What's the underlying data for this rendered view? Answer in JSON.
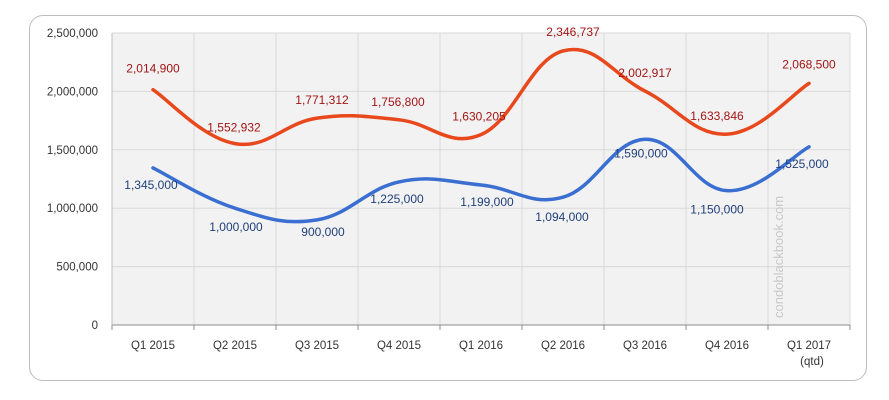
{
  "chart_data": {
    "type": "line",
    "title": "",
    "xlabel": "",
    "ylabel": "",
    "ylim": [
      0,
      2500000
    ],
    "y_ticks": [
      0,
      500000,
      1000000,
      1500000,
      2000000,
      2500000
    ],
    "y_tick_labels": [
      "0",
      "500,000",
      "1,000,000",
      "1,500,000",
      "2,000,000",
      "2,500,000"
    ],
    "categories": [
      [
        "Q1 2015"
      ],
      [
        "Q2 2015"
      ],
      [
        "Q3 2015"
      ],
      [
        "Q4 2015"
      ],
      [
        "Q1 2016"
      ],
      [
        "Q2 2016"
      ],
      [
        "Q3 2016"
      ],
      [
        "Q4 2016"
      ],
      [
        "Q1 2017",
        "(qtd)"
      ]
    ],
    "grid": true,
    "series": [
      {
        "name": "series-red",
        "color": "#e8481c",
        "label_color": "#a31515",
        "values": [
          2014900,
          1552932,
          1771312,
          1756800,
          1630205,
          2346737,
          2002917,
          1633846,
          2068500
        ],
        "labels": [
          "2,014,900",
          "1,552,932",
          "1,771,312",
          "1,756,800",
          "1,630,205",
          "2,346,737",
          "2,002,917",
          "1,633,846",
          "2,068,500"
        ]
      },
      {
        "name": "series-blue",
        "color": "#3a6fd1",
        "label_color": "#1f3f7a",
        "values": [
          1345000,
          1000000,
          900000,
          1225000,
          1199000,
          1094000,
          1590000,
          1150000,
          1525000
        ],
        "labels": [
          "1,345,000",
          "1,000,000",
          "900,000",
          "1,225,000",
          "1,199,000",
          "1,094,000",
          "1,590,000",
          "1,150,000",
          "1,525,000"
        ]
      }
    ],
    "watermark": "condoblackbook.com"
  }
}
